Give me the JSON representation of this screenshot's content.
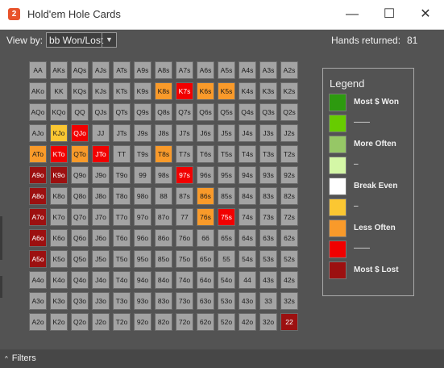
{
  "window": {
    "title": "Hold'em Hole Cards",
    "app_icon_text": "2",
    "controls": {
      "minimize": "—",
      "maximize": "☐",
      "close": "✕"
    }
  },
  "toolbar": {
    "view_by_label": "View by:",
    "view_by_value": "bb Won/Lost",
    "hands_label": "Hands returned:",
    "hands_value": "81"
  },
  "colors": {
    "grey": "#a3a3a3",
    "orange": "#f99a2a",
    "yellow": "#fbc732",
    "red": "#f10000",
    "darkred": "#9c1010"
  },
  "grid": [
    [
      [
        "AA",
        "grey"
      ],
      [
        "AKs",
        "grey"
      ],
      [
        "AQs",
        "grey"
      ],
      [
        "AJs",
        "grey"
      ],
      [
        "ATs",
        "grey"
      ],
      [
        "A9s",
        "grey"
      ],
      [
        "A8s",
        "grey"
      ],
      [
        "A7s",
        "grey"
      ],
      [
        "A6s",
        "grey"
      ],
      [
        "A5s",
        "grey"
      ],
      [
        "A4s",
        "grey"
      ],
      [
        "A3s",
        "grey"
      ],
      [
        "A2s",
        "grey"
      ]
    ],
    [
      [
        "AKo",
        "grey"
      ],
      [
        "KK",
        "grey"
      ],
      [
        "KQs",
        "grey"
      ],
      [
        "KJs",
        "grey"
      ],
      [
        "KTs",
        "grey"
      ],
      [
        "K9s",
        "grey"
      ],
      [
        "K8s",
        "orange"
      ],
      [
        "K7s",
        "red"
      ],
      [
        "K6s",
        "orange"
      ],
      [
        "K5s",
        "orange"
      ],
      [
        "K4s",
        "grey"
      ],
      [
        "K3s",
        "grey"
      ],
      [
        "K2s",
        "grey"
      ]
    ],
    [
      [
        "AQo",
        "grey"
      ],
      [
        "KQo",
        "grey"
      ],
      [
        "QQ",
        "grey"
      ],
      [
        "QJs",
        "grey"
      ],
      [
        "QTs",
        "grey"
      ],
      [
        "Q9s",
        "grey"
      ],
      [
        "Q8s",
        "grey"
      ],
      [
        "Q7s",
        "grey"
      ],
      [
        "Q6s",
        "grey"
      ],
      [
        "Q5s",
        "grey"
      ],
      [
        "Q4s",
        "grey"
      ],
      [
        "Q3s",
        "grey"
      ],
      [
        "Q2s",
        "grey"
      ]
    ],
    [
      [
        "AJo",
        "grey"
      ],
      [
        "KJo",
        "yellow"
      ],
      [
        "QJo",
        "red"
      ],
      [
        "JJ",
        "grey"
      ],
      [
        "JTs",
        "grey"
      ],
      [
        "J9s",
        "grey"
      ],
      [
        "J8s",
        "grey"
      ],
      [
        "J7s",
        "grey"
      ],
      [
        "J6s",
        "grey"
      ],
      [
        "J5s",
        "grey"
      ],
      [
        "J4s",
        "grey"
      ],
      [
        "J3s",
        "grey"
      ],
      [
        "J2s",
        "grey"
      ]
    ],
    [
      [
        "ATo",
        "orange"
      ],
      [
        "KTo",
        "red"
      ],
      [
        "QTo",
        "orange"
      ],
      [
        "JTo",
        "red"
      ],
      [
        "TT",
        "grey"
      ],
      [
        "T9s",
        "grey"
      ],
      [
        "T8s",
        "orange"
      ],
      [
        "T7s",
        "grey"
      ],
      [
        "T6s",
        "grey"
      ],
      [
        "T5s",
        "grey"
      ],
      [
        "T4s",
        "grey"
      ],
      [
        "T3s",
        "grey"
      ],
      [
        "T2s",
        "grey"
      ]
    ],
    [
      [
        "A9o",
        "darkred"
      ],
      [
        "K9o",
        "darkred"
      ],
      [
        "Q9o",
        "grey"
      ],
      [
        "J9o",
        "grey"
      ],
      [
        "T9o",
        "grey"
      ],
      [
        "99",
        "grey"
      ],
      [
        "98s",
        "grey"
      ],
      [
        "97s",
        "red"
      ],
      [
        "96s",
        "grey"
      ],
      [
        "95s",
        "grey"
      ],
      [
        "94s",
        "grey"
      ],
      [
        "93s",
        "grey"
      ],
      [
        "92s",
        "grey"
      ]
    ],
    [
      [
        "A8o",
        "darkred"
      ],
      [
        "K8o",
        "grey"
      ],
      [
        "Q8o",
        "grey"
      ],
      [
        "J8o",
        "grey"
      ],
      [
        "T8o",
        "grey"
      ],
      [
        "98o",
        "grey"
      ],
      [
        "88",
        "grey"
      ],
      [
        "87s",
        "grey"
      ],
      [
        "86s",
        "orange"
      ],
      [
        "85s",
        "grey"
      ],
      [
        "84s",
        "grey"
      ],
      [
        "83s",
        "grey"
      ],
      [
        "82s",
        "grey"
      ]
    ],
    [
      [
        "A7o",
        "darkred"
      ],
      [
        "K7o",
        "grey"
      ],
      [
        "Q7o",
        "grey"
      ],
      [
        "J7o",
        "grey"
      ],
      [
        "T7o",
        "grey"
      ],
      [
        "97o",
        "grey"
      ],
      [
        "87o",
        "grey"
      ],
      [
        "77",
        "grey"
      ],
      [
        "76s",
        "orange"
      ],
      [
        "75s",
        "red"
      ],
      [
        "74s",
        "grey"
      ],
      [
        "73s",
        "grey"
      ],
      [
        "72s",
        "grey"
      ]
    ],
    [
      [
        "A6o",
        "darkred"
      ],
      [
        "K6o",
        "grey"
      ],
      [
        "Q6o",
        "grey"
      ],
      [
        "J6o",
        "grey"
      ],
      [
        "T6o",
        "grey"
      ],
      [
        "96o",
        "grey"
      ],
      [
        "86o",
        "grey"
      ],
      [
        "76o",
        "grey"
      ],
      [
        "66",
        "grey"
      ],
      [
        "65s",
        "grey"
      ],
      [
        "64s",
        "grey"
      ],
      [
        "63s",
        "grey"
      ],
      [
        "62s",
        "grey"
      ]
    ],
    [
      [
        "A5o",
        "darkred"
      ],
      [
        "K5o",
        "grey"
      ],
      [
        "Q5o",
        "grey"
      ],
      [
        "J5o",
        "grey"
      ],
      [
        "T5o",
        "grey"
      ],
      [
        "95o",
        "grey"
      ],
      [
        "85o",
        "grey"
      ],
      [
        "75o",
        "grey"
      ],
      [
        "65o",
        "grey"
      ],
      [
        "55",
        "grey"
      ],
      [
        "54s",
        "grey"
      ],
      [
        "53s",
        "grey"
      ],
      [
        "52s",
        "grey"
      ]
    ],
    [
      [
        "A4o",
        "grey"
      ],
      [
        "K4o",
        "grey"
      ],
      [
        "Q4o",
        "grey"
      ],
      [
        "J4o",
        "grey"
      ],
      [
        "T4o",
        "grey"
      ],
      [
        "94o",
        "grey"
      ],
      [
        "84o",
        "grey"
      ],
      [
        "74o",
        "grey"
      ],
      [
        "64o",
        "grey"
      ],
      [
        "54o",
        "grey"
      ],
      [
        "44",
        "grey"
      ],
      [
        "43s",
        "grey"
      ],
      [
        "42s",
        "grey"
      ]
    ],
    [
      [
        "A3o",
        "grey"
      ],
      [
        "K3o",
        "grey"
      ],
      [
        "Q3o",
        "grey"
      ],
      [
        "J3o",
        "grey"
      ],
      [
        "T3o",
        "grey"
      ],
      [
        "93o",
        "grey"
      ],
      [
        "83o",
        "grey"
      ],
      [
        "73o",
        "grey"
      ],
      [
        "63o",
        "grey"
      ],
      [
        "53o",
        "grey"
      ],
      [
        "43o",
        "grey"
      ],
      [
        "33",
        "grey"
      ],
      [
        "32s",
        "grey"
      ]
    ],
    [
      [
        "A2o",
        "grey"
      ],
      [
        "K2o",
        "grey"
      ],
      [
        "Q2o",
        "grey"
      ],
      [
        "J2o",
        "grey"
      ],
      [
        "T2o",
        "grey"
      ],
      [
        "92o",
        "grey"
      ],
      [
        "82o",
        "grey"
      ],
      [
        "72o",
        "grey"
      ],
      [
        "62o",
        "grey"
      ],
      [
        "52o",
        "grey"
      ],
      [
        "42o",
        "grey"
      ],
      [
        "32o",
        "grey"
      ],
      [
        "22",
        "darkred"
      ]
    ]
  ],
  "legend": {
    "title": "Legend",
    "items": [
      {
        "label": "Most $ Won",
        "color": "#2d9a0f"
      },
      {
        "label": "——",
        "color": "#67cc00"
      },
      {
        "label": "More Often",
        "color": "#96c766"
      },
      {
        "label": "–",
        "color": "#d4f7a6"
      },
      {
        "label": "Break Even",
        "color": "#ffffff"
      },
      {
        "label": "–",
        "color": "#fbc732"
      },
      {
        "label": "Less Often",
        "color": "#f99a2a"
      },
      {
        "label": "——",
        "color": "#f10000"
      },
      {
        "label": "Most $ Lost",
        "color": "#9c1010"
      }
    ]
  },
  "footer": {
    "filters_label": "Filters",
    "filters_chevron": "^"
  }
}
